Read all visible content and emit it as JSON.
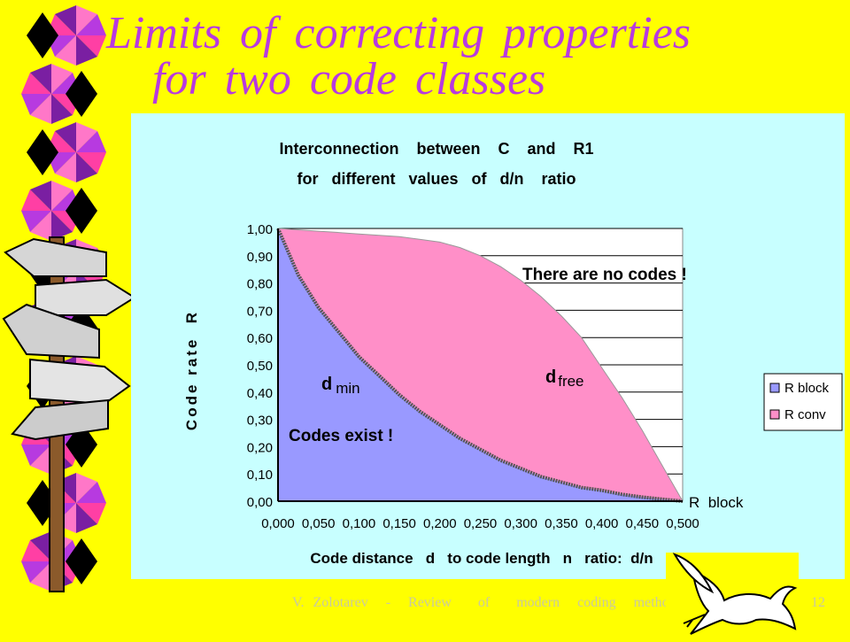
{
  "slide": {
    "title_line1": "Limits  of  correcting   properties",
    "title_line2": "for   two  code  classes",
    "footer": "V. Zolotarev  -  Review   of   modern  coding  methods",
    "page_number": "12"
  },
  "colors": {
    "background": "#FFFF00",
    "title": "#B73AE0",
    "panel": "#C8FFFF",
    "block_fill": "#9999FF",
    "conv_fill": "#FF8FC8"
  },
  "icons": [
    "signpost-icon",
    "ribbon-decoration",
    "dove-icon"
  ],
  "chart_data": {
    "type": "area",
    "title_line1": "Interconnection    between    C    and    R1",
    "title_line2": "for   different   values   of   d/n    ratio",
    "xlabel": "Code distance   d   to code length   n   ratio:  d/n",
    "ylabel": "Code rate  R",
    "x_ticks": [
      "0,000",
      "0,050",
      "0,100",
      "0,150",
      "0,200",
      "0,250",
      "0,300",
      "0,350",
      "0,400",
      "0,450",
      "0,500"
    ],
    "y_ticks": [
      "0,00",
      "0,10",
      "0,20",
      "0,30",
      "0,40",
      "0,50",
      "0,60",
      "0,70",
      "0,80",
      "0,90",
      "1,00"
    ],
    "xlim": [
      0,
      0.5
    ],
    "ylim": [
      0,
      1.0
    ],
    "grid": "horizontal",
    "x": [
      0,
      0.025,
      0.05,
      0.075,
      0.1,
      0.125,
      0.15,
      0.175,
      0.2,
      0.225,
      0.25,
      0.275,
      0.3,
      0.325,
      0.35,
      0.375,
      0.4,
      0.425,
      0.45,
      0.475,
      0.5
    ],
    "series": [
      {
        "name": "R block",
        "values": [
          1.0,
          0.83,
          0.71,
          0.62,
          0.53,
          0.46,
          0.39,
          0.33,
          0.28,
          0.23,
          0.19,
          0.15,
          0.12,
          0.09,
          0.07,
          0.05,
          0.04,
          0.025,
          0.015,
          0.007,
          0.0
        ]
      },
      {
        "name": "R conv",
        "values": [
          1.0,
          0.995,
          0.99,
          0.985,
          0.98,
          0.975,
          0.97,
          0.96,
          0.95,
          0.93,
          0.9,
          0.86,
          0.81,
          0.75,
          0.68,
          0.6,
          0.49,
          0.38,
          0.26,
          0.13,
          0.0
        ]
      }
    ],
    "legend_position": "right",
    "legend": [
      "R block",
      "R conv"
    ],
    "annotations": {
      "no_codes": "There are no codes !",
      "d_min_d": "d",
      "d_min_sub": "min",
      "d_free_d": "d",
      "d_free_sub": "free",
      "codes_exist": "Codes exist !",
      "r_block_end": "R  block"
    }
  }
}
